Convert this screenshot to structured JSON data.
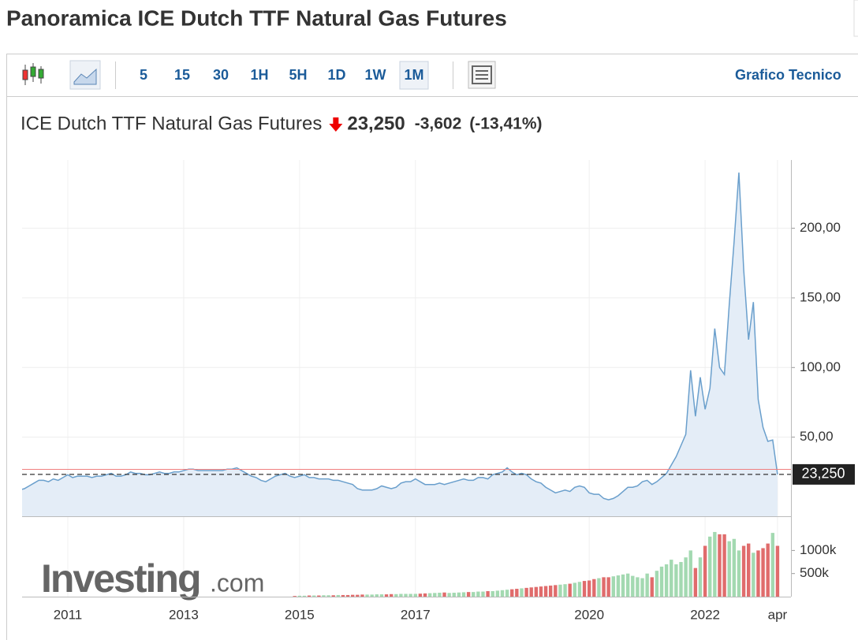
{
  "header": {
    "title": "Panoramica ICE Dutch TTF Natural Gas Futures"
  },
  "toolbar": {
    "intervals": [
      "5",
      "15",
      "30",
      "1H",
      "5H",
      "1D",
      "1W",
      "1M"
    ],
    "active_interval": 7,
    "link": "Grafico Tecnico"
  },
  "watermark": {
    "brand": "Investing",
    "suffix": ".com"
  },
  "chart_data": {
    "type": "line",
    "last": {
      "value": 23.25,
      "label": "23,250"
    },
    "change": {
      "value": -3.602,
      "label": "-3,602"
    },
    "change_percent": {
      "value": -13.41,
      "label": "(-13,41%)"
    },
    "categories": [
      null,
      null,
      null,
      null,
      null,
      null,
      null,
      null,
      null,
      null,
      "2011",
      null,
      null,
      null,
      null,
      null,
      null,
      null,
      null,
      null,
      null,
      null,
      null,
      null,
      null,
      null,
      null,
      null,
      null,
      null,
      null,
      null,
      null,
      null,
      "2013",
      null,
      null,
      null,
      null,
      null,
      null,
      null,
      null,
      null,
      null,
      null,
      null,
      null,
      null,
      null,
      null,
      null,
      null,
      null,
      null,
      null,
      null,
      null,
      "2015",
      null,
      null,
      null,
      null,
      null,
      null,
      null,
      null,
      null,
      null,
      null,
      null,
      null,
      null,
      null,
      null,
      null,
      null,
      null,
      null,
      null,
      null,
      null,
      "2017",
      null,
      null,
      null,
      null,
      null,
      null,
      null,
      null,
      null,
      null,
      null,
      null,
      null,
      null,
      null,
      null,
      null,
      null,
      null,
      null,
      null,
      null,
      null,
      null,
      null,
      null,
      null,
      null,
      null,
      null,
      null,
      null,
      null,
      null,
      null,
      "2020",
      null,
      null,
      null,
      null,
      null,
      null,
      null,
      null,
      null,
      null,
      null,
      null,
      null,
      null,
      null,
      null,
      null,
      null,
      null,
      null,
      null,
      null,
      null,
      "2022",
      null,
      null,
      null,
      null,
      null,
      null,
      null,
      null,
      null,
      null,
      null,
      null,
      null,
      null,
      "apr"
    ],
    "series": [
      {
        "name": "ICE Dutch TTF Natural Gas Futures",
        "color": "#6a9fcc",
        "fill": "#e4edf7",
        "values": [
          12,
          13,
          15,
          17,
          19,
          19,
          18,
          20,
          19,
          21,
          23,
          21,
          22,
          22,
          22,
          21,
          22,
          22,
          23,
          24,
          22,
          22,
          23,
          25,
          24,
          24,
          23,
          23,
          24,
          25,
          24,
          24,
          25,
          25,
          26,
          27,
          27,
          26,
          26,
          26,
          26,
          26,
          26,
          27,
          27,
          28,
          26,
          24,
          22,
          21,
          19,
          18,
          20,
          22,
          23,
          24,
          22,
          21,
          22,
          23,
          21,
          21,
          20,
          20,
          20,
          19,
          19,
          18,
          17,
          16,
          13,
          12,
          12,
          12,
          13,
          15,
          14,
          13,
          14,
          17,
          18,
          18,
          20,
          18,
          16,
          16,
          16,
          17,
          16,
          17,
          18,
          19,
          20,
          19,
          19,
          21,
          21,
          20,
          23,
          24,
          25,
          28,
          25,
          23,
          24,
          23,
          20,
          18,
          17,
          14,
          12,
          10,
          11,
          12,
          11,
          14,
          15,
          14,
          10,
          9,
          9,
          6,
          5,
          6,
          8,
          11,
          14,
          14,
          15,
          18,
          19,
          16,
          18,
          21,
          24,
          30,
          36,
          44,
          52,
          98,
          65,
          93,
          70,
          85,
          128,
          100,
          95,
          145,
          190,
          240,
          170,
          120,
          147,
          77,
          57,
          47,
          48,
          23.25
        ]
      },
      {
        "type": "bar",
        "axis": "y2",
        "up_color": "#a3d9b1",
        "down_color": "#e06c6c",
        "values": [
          null,
          null,
          null,
          null,
          null,
          null,
          null,
          null,
          null,
          null,
          null,
          null,
          null,
          null,
          null,
          null,
          null,
          null,
          null,
          null,
          null,
          null,
          null,
          null,
          null,
          null,
          null,
          null,
          null,
          null,
          null,
          null,
          null,
          null,
          null,
          null,
          null,
          null,
          null,
          null,
          null,
          null,
          null,
          null,
          null,
          null,
          null,
          null,
          null,
          null,
          null,
          null,
          null,
          null,
          null,
          null,
          null,
          15,
          20,
          20,
          25,
          25,
          25,
          30,
          30,
          30,
          35,
          35,
          35,
          40,
          40,
          45,
          45,
          45,
          50,
          50,
          50,
          55,
          55,
          60,
          60,
          60,
          60,
          65,
          70,
          75,
          80,
          85,
          90,
          80,
          85,
          90,
          95,
          100,
          100,
          110,
          110,
          120,
          120,
          130,
          140,
          150,
          160,
          170,
          180,
          190,
          200,
          210,
          220,
          230,
          240,
          250,
          260,
          270,
          280,
          300,
          320,
          340,
          350,
          380,
          400,
          420,
          420,
          440,
          460,
          480,
          500,
          450,
          420,
          400,
          500,
          420,
          560,
          650,
          700,
          800,
          700,
          750,
          850,
          1000,
          620,
          850,
          1100,
          1300,
          1400,
          1350,
          1350,
          1200,
          1250,
          1000,
          1100,
          1150,
          950,
          1000,
          1050,
          1150,
          1380,
          1100
        ]
      }
    ],
    "ylim": [
      -6.8,
      249
    ],
    "yticks": [
      {
        "value": 50,
        "label": "50,00"
      },
      {
        "value": 100,
        "label": "100,00"
      },
      {
        "value": 150,
        "label": "150,00"
      },
      {
        "value": 200,
        "label": "200,00"
      }
    ],
    "y2lim": [
      0,
      1655
    ],
    "y2ticks": [
      {
        "value": 500,
        "label": "500k"
      },
      {
        "value": 1000,
        "label": "1000k"
      }
    ],
    "grid": true
  }
}
